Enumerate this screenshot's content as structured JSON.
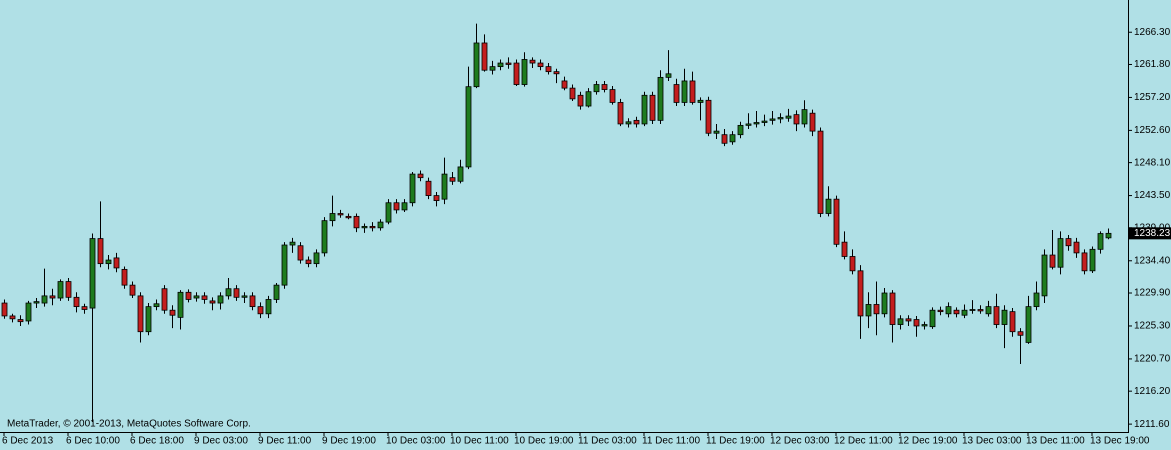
{
  "chart_data": {
    "type": "candlestick",
    "watermark": "MetaTrader, © 2001-2013, MetaQuotes Software Corp.",
    "background": "#b0e0e6",
    "up_color": "#1e7b1e",
    "down_color": "#c41e1e",
    "wick_color": "#000000",
    "last_price": 1238.23,
    "ylim": [
      1210.5,
      1270.8
    ],
    "yticks": [
      {
        "value": 1211.6,
        "label": "1211.60"
      },
      {
        "value": 1216.2,
        "label": "1216.20"
      },
      {
        "value": 1220.7,
        "label": "1220.70"
      },
      {
        "value": 1225.3,
        "label": "1225.30"
      },
      {
        "value": 1229.9,
        "label": "1229.90"
      },
      {
        "value": 1234.4,
        "label": "1234.40"
      },
      {
        "value": 1239,
        "label": "1239.00"
      },
      {
        "value": 1243.5,
        "label": "1243.50"
      },
      {
        "value": 1248.1,
        "label": "1248.10"
      },
      {
        "value": 1252.6,
        "label": "1252.60"
      },
      {
        "value": 1257.2,
        "label": "1257.20"
      },
      {
        "value": 1261.8,
        "label": "1261.80"
      },
      {
        "value": 1266.3,
        "label": "1266.30"
      }
    ],
    "categories": [
      "6 Dec 2013",
      null,
      null,
      null,
      null,
      null,
      null,
      null,
      "6 Dec 10:00",
      null,
      null,
      null,
      null,
      null,
      null,
      null,
      "6 Dec 18:00",
      null,
      null,
      null,
      null,
      null,
      null,
      null,
      "9 Dec 03:00",
      null,
      null,
      null,
      null,
      null,
      null,
      null,
      "9 Dec 11:00",
      null,
      null,
      null,
      null,
      null,
      null,
      null,
      "9 Dec 19:00",
      null,
      null,
      null,
      null,
      null,
      null,
      null,
      "10 Dec 03:00",
      null,
      null,
      null,
      null,
      null,
      null,
      null,
      "10 Dec 11:00",
      null,
      null,
      null,
      null,
      null,
      null,
      null,
      "10 Dec 19:00",
      null,
      null,
      null,
      null,
      null,
      null,
      null,
      "11 Dec 03:00",
      null,
      null,
      null,
      null,
      null,
      null,
      null,
      "11 Dec 11:00",
      null,
      null,
      null,
      null,
      null,
      null,
      null,
      "11 Dec 19:00",
      null,
      null,
      null,
      null,
      null,
      null,
      null,
      "12 Dec 03:00",
      null,
      null,
      null,
      null,
      null,
      null,
      null,
      "12 Dec 11:00",
      null,
      null,
      null,
      null,
      null,
      null,
      null,
      "12 Dec 19:00",
      null,
      null,
      null,
      null,
      null,
      null,
      null,
      "13 Dec 03:00",
      null,
      null,
      null,
      null,
      null,
      null,
      null,
      "13 Dec 11:00",
      null,
      null,
      null,
      null,
      null,
      null,
      null,
      "13 Dec 19:00",
      null,
      null
    ],
    "open": [
      1228.5,
      1226.7,
      1226.2,
      1226,
      1228.5,
      1228.5,
      1229.5,
      1229.2,
      1231.5,
      1229.3,
      1228,
      1227.8,
      1237.5,
      1234,
      1234.8,
      1233.2,
      1231,
      1229.5,
      1224.5,
      1228,
      1230.5,
      1227.5,
      1226.5,
      1230,
      1229.2,
      1229.5,
      1228.8,
      1228.5,
      1229.5,
      1230.5,
      1229.3,
      1229.5,
      1228,
      1227,
      1229,
      1231,
      1236.6,
      1236.5,
      1234.5,
      1234,
      1235.5,
      1240,
      1241,
      1240.6,
      1240.6,
      1239,
      1239.2,
      1239,
      1239.8,
      1242.5,
      1241.5,
      1242.5,
      1246.5,
      1245.5,
      1243.5,
      1243,
      1246,
      1245.5,
      1247.5,
      1258.7,
      1264.8,
      1261,
      1261.5,
      1262,
      1262,
      1259,
      1262.4,
      1262,
      1261.5,
      1260.8,
      1259.5,
      1258.5,
      1257.5,
      1256,
      1258,
      1259,
      1258.3,
      1256.5,
      1253.5,
      1254,
      1253.5,
      1257.5,
      1254,
      1260,
      1259,
      1256.5,
      1259.5,
      1256.5,
      1256.8,
      1252.2,
      1252,
      1251,
      1252,
      1253.3,
      1253.5,
      1253.7,
      1254,
      1254.2,
      1254.3,
      1254.8,
      1253.5,
      1255,
      1252.5,
      1241,
      1243,
      1237,
      1235,
      1233,
      1226.7,
      1228.3,
      1227,
      1229.9,
      1225.5,
      1226.3,
      1226.2,
      1225.3,
      1225.2,
      1227.5,
      1227,
      1227.5,
      1226.8,
      1227.5,
      1227.6,
      1227,
      1228,
      1225.5,
      1227.3,
      1224.5,
      1223,
      1228,
      1229.5,
      1235.2,
      1233.5,
      1237.5,
      1237,
      1235.5,
      1233,
      1236,
      1237.6
    ],
    "high": [
      1229,
      1227,
      1226.8,
      1228.8,
      1229.2,
      1233.3,
      1230.5,
      1231.8,
      1232,
      1230,
      1228.4,
      1238.2,
      1242.7,
      1235.2,
      1235.5,
      1233.6,
      1231.5,
      1230,
      1228.5,
      1229,
      1231,
      1228.2,
      1230.3,
      1230.4,
      1230,
      1230,
      1229.3,
      1230,
      1232,
      1231,
      1230,
      1230,
      1228.6,
      1229.5,
      1231.3,
      1237,
      1237.6,
      1237,
      1235,
      1236,
      1240.5,
      1243.5,
      1241.5,
      1241,
      1241,
      1239.6,
      1239.8,
      1240.2,
      1243,
      1243,
      1243,
      1246.8,
      1247,
      1246,
      1244,
      1248.8,
      1246.8,
      1248.5,
      1261.5,
      1267.5,
      1266,
      1262.3,
      1262.5,
      1262.8,
      1262.5,
      1263.5,
      1262.8,
      1262.5,
      1262,
      1261.2,
      1260.1,
      1259,
      1258,
      1258.5,
      1259.5,
      1259.5,
      1258.8,
      1257,
      1254.3,
      1254.5,
      1258,
      1258,
      1261,
      1263.8,
      1259.8,
      1261.2,
      1260.8,
      1257.2,
      1257.3,
      1253.5,
      1252.8,
      1252.5,
      1253.8,
      1255,
      1255.3,
      1254.8,
      1255.3,
      1255,
      1255.6,
      1255.4,
      1256.8,
      1255.5,
      1253,
      1244.8,
      1243.5,
      1238.5,
      1236,
      1233.8,
      1230,
      1231.5,
      1230.6,
      1230.3,
      1226.8,
      1226.8,
      1226.7,
      1225.9,
      1227.9,
      1228,
      1228.6,
      1227.9,
      1228.3,
      1228.9,
      1228.2,
      1228.8,
      1229.8,
      1228.2,
      1227.8,
      1225,
      1229.5,
      1231.5,
      1236,
      1238.7,
      1238.5,
      1238,
      1237.6,
      1236,
      1236.4,
      1238.5,
      1238.9
    ],
    "low": [
      1226.3,
      1225.8,
      1225.3,
      1225.5,
      1227.8,
      1228,
      1228.2,
      1228.8,
      1228.8,
      1227.2,
      1227,
      1211.9,
      1233.5,
      1233.2,
      1232.8,
      1230.5,
      1229.2,
      1223,
      1224,
      1227.5,
      1227,
      1225,
      1224.8,
      1228.6,
      1228.7,
      1228.4,
      1227.5,
      1227.6,
      1229,
      1228.8,
      1228.5,
      1227.5,
      1226.4,
      1226.4,
      1228.5,
      1230.5,
      1235.5,
      1234,
      1233.5,
      1233.5,
      1235,
      1239.2,
      1240.4,
      1240.2,
      1238.4,
      1238.3,
      1238.5,
      1238.6,
      1239.5,
      1241,
      1241.2,
      1242,
      1245.5,
      1243,
      1242,
      1242.3,
      1245,
      1245.2,
      1247.2,
      1258.5,
      1260.8,
      1260.4,
      1261,
      1261.2,
      1258.8,
      1258.7,
      1261.3,
      1261,
      1260.4,
      1259.2,
      1258.2,
      1256.7,
      1255.5,
      1255.8,
      1257.6,
      1257.9,
      1256.2,
      1253.2,
      1253,
      1253,
      1253.2,
      1253.5,
      1253.5,
      1259.5,
      1256,
      1256,
      1256.2,
      1254,
      1251.8,
      1251.4,
      1250.4,
      1250.6,
      1251.5,
      1252.8,
      1253,
      1253.2,
      1253.4,
      1253.6,
      1253.8,
      1252.5,
      1253,
      1251.8,
      1240.5,
      1240.6,
      1236.3,
      1234.6,
      1232.5,
      1223.5,
      1225,
      1224,
      1226.5,
      1223,
      1224.8,
      1225.3,
      1223.8,
      1224.8,
      1224.9,
      1226.8,
      1226.5,
      1226.5,
      1226.4,
      1227,
      1227,
      1226.6,
      1225,
      1222.2,
      1223.8,
      1220,
      1222.8,
      1227.5,
      1228.5,
      1233.2,
      1232.5,
      1235.8,
      1234.8,
      1232.5,
      1232.7,
      1235.4,
      1237.4
    ],
    "close": [
      1226.7,
      1226.3,
      1225.9,
      1228.5,
      1228.7,
      1229.5,
      1229.2,
      1231.5,
      1229.3,
      1228,
      1227.6,
      1237.5,
      1234,
      1234.5,
      1233.4,
      1231,
      1229.6,
      1224.5,
      1228,
      1228.4,
      1227.5,
      1226.8,
      1230,
      1229,
      1229.5,
      1229,
      1228.5,
      1229.5,
      1230.5,
      1229.3,
      1229.5,
      1228,
      1227,
      1229,
      1231,
      1236.6,
      1237,
      1234.5,
      1234,
      1235.5,
      1240,
      1241,
      1240.8,
      1240.4,
      1239,
      1239.2,
      1239,
      1239.8,
      1242.5,
      1241.5,
      1242.5,
      1246.5,
      1246,
      1243.5,
      1242.8,
      1246.5,
      1245.5,
      1247.5,
      1258.7,
      1264.8,
      1261,
      1261.5,
      1262,
      1261.8,
      1259,
      1262.5,
      1262,
      1261.5,
      1260.8,
      1260.5,
      1258.5,
      1257,
      1256,
      1258,
      1259,
      1258.3,
      1256.5,
      1253.5,
      1253.8,
      1253.5,
      1257.5,
      1254,
      1260,
      1260.5,
      1256.5,
      1259.5,
      1256.5,
      1256.8,
      1252.2,
      1252.5,
      1250.8,
      1252,
      1253.3,
      1253.5,
      1253.7,
      1253.9,
      1254.2,
      1254.4,
      1254.6,
      1253.5,
      1255.5,
      1252.5,
      1241,
      1243,
      1236.7,
      1235,
      1233,
      1226.7,
      1228.3,
      1227,
      1229.9,
      1225.5,
      1226.3,
      1226,
      1225.3,
      1225.5,
      1227.5,
      1227.3,
      1228,
      1227,
      1227.5,
      1227.6,
      1227.4,
      1228,
      1225.5,
      1227.5,
      1224.5,
      1224,
      1228,
      1229.9,
      1235.2,
      1233.5,
      1237.5,
      1236.5,
      1235.5,
      1233,
      1236,
      1238.2,
      1238.23
    ]
  }
}
